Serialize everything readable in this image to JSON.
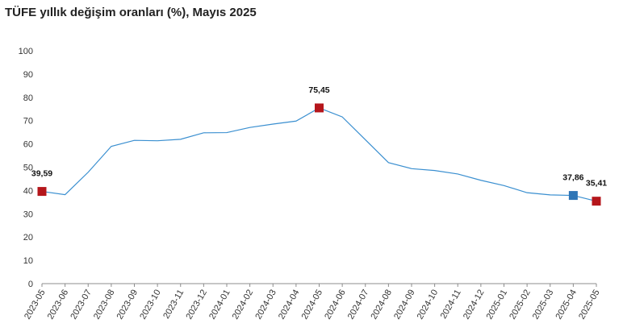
{
  "chart_data": {
    "type": "line",
    "title": "TÜFE yıllık değişim oranları (%), Mayıs 2025",
    "xlabel": "",
    "ylabel": "",
    "ylim": [
      0,
      100
    ],
    "yticks": [
      0,
      10,
      20,
      30,
      40,
      50,
      60,
      70,
      80,
      90,
      100
    ],
    "grid": false,
    "categories": [
      "2023-05",
      "2023-06",
      "2023-07",
      "2023-08",
      "2023-09",
      "2023-10",
      "2023-11",
      "2023-12",
      "2024-01",
      "2024-02",
      "2024-03",
      "2024-04",
      "2024-05",
      "2024-06",
      "2024-07",
      "2024-08",
      "2024-09",
      "2024-10",
      "2024-11",
      "2024-12",
      "2025-01",
      "2025-02",
      "2025-03",
      "2025-04",
      "2025-05"
    ],
    "series": [
      {
        "values": [
          39.59,
          38.21,
          47.83,
          58.94,
          61.53,
          61.36,
          61.98,
          64.77,
          64.86,
          67.07,
          68.5,
          69.8,
          75.45,
          71.6,
          61.78,
          51.97,
          49.38,
          48.58,
          47.09,
          44.38,
          42.12,
          39.05,
          38.1,
          37.86,
          35.41
        ],
        "color": "#3a8fd0"
      }
    ],
    "highlights": [
      {
        "index": 0,
        "label": "39,59",
        "color": "#b5161b"
      },
      {
        "index": 12,
        "label": "75,45",
        "color": "#b5161b"
      },
      {
        "index": 23,
        "label": "37,86",
        "color": "#2e75b6"
      },
      {
        "index": 24,
        "label": "35,41",
        "color": "#b5161b"
      }
    ]
  }
}
